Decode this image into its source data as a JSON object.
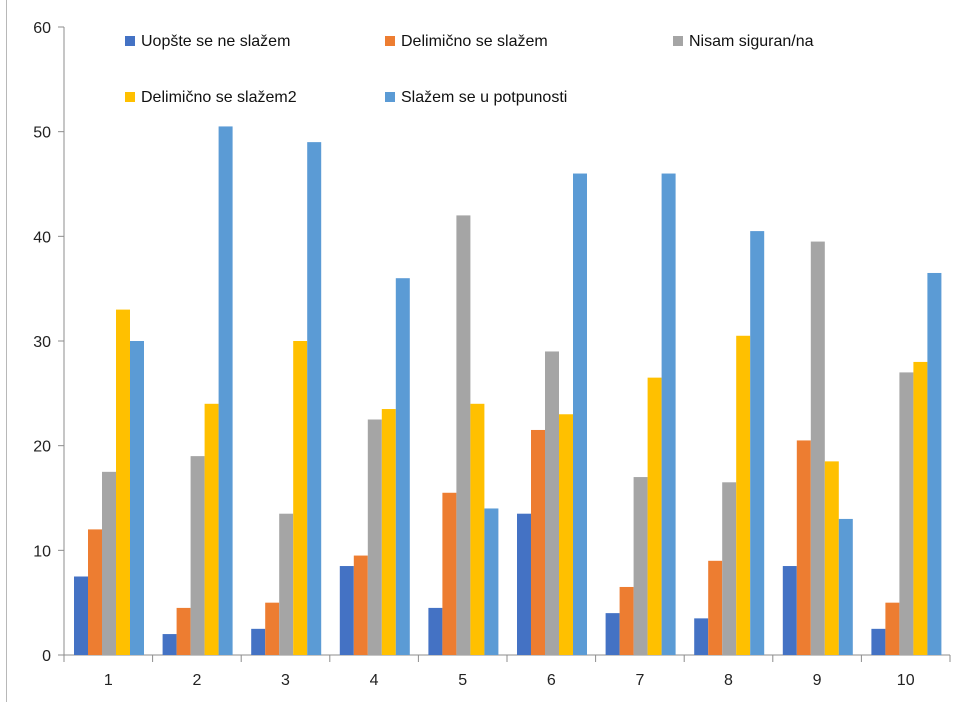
{
  "chart_data": {
    "type": "bar",
    "title": "",
    "xlabel": "",
    "ylabel": "",
    "categories": [
      "1",
      "2",
      "3",
      "4",
      "5",
      "6",
      "7",
      "8",
      "9",
      "10"
    ],
    "ylim": [
      0,
      60
    ],
    "yticks": [
      0,
      10,
      20,
      30,
      40,
      50,
      60
    ],
    "grid": false,
    "legend_position": "top",
    "series": [
      {
        "name": "Uopšte se ne slažem",
        "color": "#4472C4",
        "values": [
          7.5,
          2,
          2.5,
          8.5,
          4.5,
          13.5,
          4,
          3.5,
          8.5,
          2.5
        ]
      },
      {
        "name": "Delimično se slažem",
        "color": "#ED7D31",
        "values": [
          12,
          4.5,
          5,
          9.5,
          15.5,
          21.5,
          6.5,
          9,
          20.5,
          5
        ]
      },
      {
        "name": "Nisam siguran/na",
        "color": "#A5A5A5",
        "values": [
          17.5,
          19,
          13.5,
          22.5,
          42,
          29,
          17,
          16.5,
          39.5,
          27
        ]
      },
      {
        "name": "Delimično se slažem2",
        "color": "#FFC000",
        "values": [
          33,
          24,
          30,
          23.5,
          24,
          23,
          26.5,
          30.5,
          18.5,
          28
        ]
      },
      {
        "name": "Slažem se u potpunosti",
        "color": "#5B9BD5",
        "values": [
          30,
          50.5,
          49,
          36,
          14,
          46,
          46,
          40.5,
          13,
          36.5
        ]
      }
    ]
  }
}
